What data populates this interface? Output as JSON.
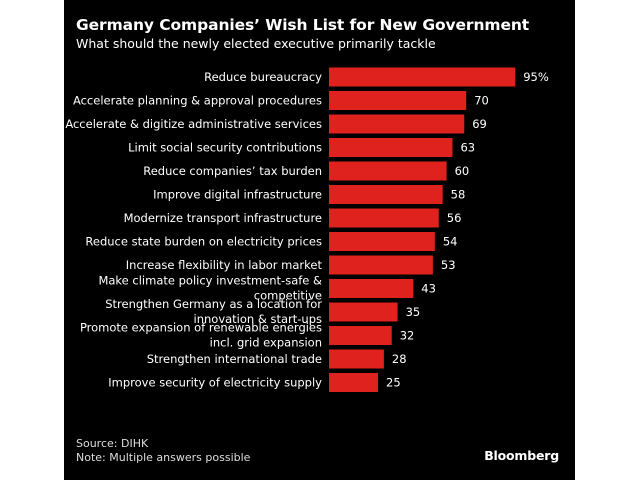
{
  "chart_data": {
    "type": "bar",
    "orientation": "horizontal",
    "title": "Germany Companies’ Wish List for New Government",
    "subtitle": "What should the newly elected executive primarily tackle",
    "xlabel": "",
    "ylabel": "",
    "value_unit": "%",
    "xlim": [
      0,
      100
    ],
    "grid": false,
    "bar_color": "#e0221e",
    "categories": [
      "Reduce bureaucracy",
      "Accelerate planning & approval procedures",
      "Accelerate & digitize administrative services",
      "Limit social security contributions",
      "Reduce companies’ tax burden",
      "Improve digital infrastructure",
      "Modernize transport infrastructure",
      "Reduce state burden on electricity prices",
      "Increase flexibility in labor market",
      "Make climate policy investment-safe & competitive",
      "Strengthen Germany as a location for innovation & start-ups",
      "Promote expansion of renewable energies incl. grid expansion",
      "Strengthen international trade",
      "Improve security of electricity supply"
    ],
    "category_lines": [
      [
        "Reduce bureaucracy"
      ],
      [
        "Accelerate planning & approval procedures"
      ],
      [
        "Accelerate & digitize administrative services"
      ],
      [
        "Limit social security contributions"
      ],
      [
        "Reduce companies’ tax burden"
      ],
      [
        "Improve digital infrastructure"
      ],
      [
        "Modernize transport infrastructure"
      ],
      [
        "Reduce state burden on electricity prices"
      ],
      [
        "Increase flexibility in labor market"
      ],
      [
        "Make climate policy investment-safe &",
        "competitive"
      ],
      [
        "Strengthen Germany as a location for",
        "innovation & start-ups"
      ],
      [
        "Promote expansion of renewable energies",
        "incl. grid expansion"
      ],
      [
        "Strengthen international trade"
      ],
      [
        "Improve security of electricity supply"
      ]
    ],
    "values": [
      95,
      70,
      69,
      63,
      60,
      58,
      56,
      54,
      53,
      43,
      35,
      32,
      28,
      25
    ],
    "value_labels": [
      "95%",
      "70",
      "69",
      "63",
      "60",
      "58",
      "56",
      "54",
      "53",
      "43",
      "35",
      "32",
      "28",
      "25"
    ]
  },
  "footer": {
    "source": "Source: DIHK",
    "note": "Note: Multiple answers possible",
    "brand": "Bloomberg"
  }
}
